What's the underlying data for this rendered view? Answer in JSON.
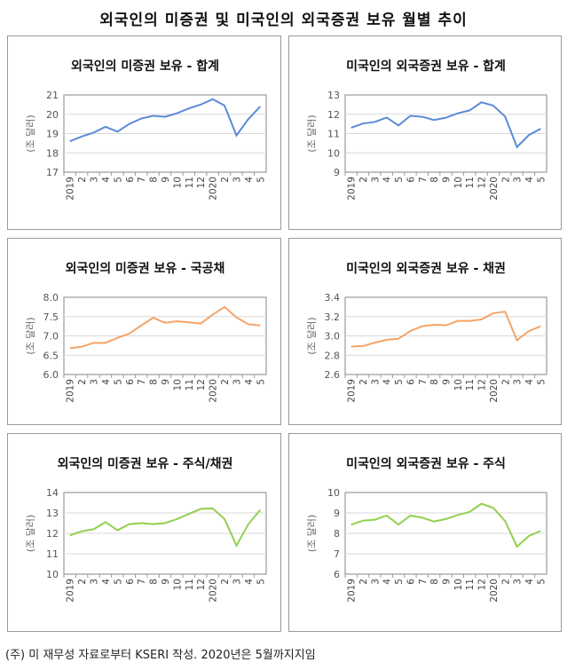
{
  "title": "외국인의 미증권 및 미국인의 외국증권 보유 월별 추이",
  "footnote": "(주) 미 재무성 자료로부터 KSERI 작성. 2020년은 5월까지지임",
  "chart_data": [
    {
      "type": "line",
      "title": "외국인의 미증권 보유 - 합계",
      "ylabel": "(조 달러)",
      "ylim": [
        17,
        21
      ],
      "yticks": [
        "17",
        "18",
        "19",
        "20",
        "21"
      ],
      "color": "#5B8BD6",
      "categories": [
        "2019",
        "2",
        "3",
        "4",
        "5",
        "6",
        "7",
        "8",
        "9",
        "10",
        "11",
        "12",
        "2020",
        "2",
        "3",
        "4",
        "5"
      ],
      "values": [
        18.6,
        18.85,
        19.05,
        19.35,
        19.1,
        19.5,
        19.78,
        19.92,
        19.87,
        20.05,
        20.3,
        20.5,
        20.78,
        20.45,
        18.9,
        19.75,
        20.4
      ]
    },
    {
      "type": "line",
      "title": "미국인의 외국증권 보유 - 합계",
      "ylabel": "(조 달러)",
      "ylim": [
        9,
        13
      ],
      "yticks": [
        "9",
        "10",
        "11",
        "12",
        "13"
      ],
      "color": "#5B8BD6",
      "categories": [
        "2019",
        "2",
        "3",
        "4",
        "5",
        "6",
        "7",
        "8",
        "9",
        "10",
        "11",
        "12",
        "2020",
        "2",
        "3",
        "4",
        "5"
      ],
      "values": [
        11.3,
        11.52,
        11.6,
        11.83,
        11.42,
        11.92,
        11.87,
        11.7,
        11.82,
        12.05,
        12.2,
        12.62,
        12.45,
        11.88,
        10.3,
        10.92,
        11.25
      ]
    },
    {
      "type": "line",
      "title": "외국인의 미증권 보유 - 국공채",
      "ylabel": "(조 달러)",
      "ylim": [
        6,
        8
      ],
      "yticks": [
        "6.0",
        "6.5",
        "7.0",
        "7.5",
        "8.0"
      ],
      "color": "#F4A468",
      "categories": [
        "2019",
        "2",
        "3",
        "4",
        "5",
        "6",
        "7",
        "8",
        "9",
        "10",
        "11",
        "12",
        "2020",
        "2",
        "3",
        "4",
        "5"
      ],
      "values": [
        6.68,
        6.72,
        6.82,
        6.82,
        6.95,
        7.06,
        7.27,
        7.47,
        7.34,
        7.38,
        7.35,
        7.32,
        7.55,
        7.75,
        7.48,
        7.3,
        7.27
      ]
    },
    {
      "type": "line",
      "title": "미국인의 외국증권 보유 - 채권",
      "ylabel": "(조 달러)",
      "ylim": [
        2.6,
        3.4
      ],
      "yticks": [
        "2.6",
        "2.8",
        "3.0",
        "3.2",
        "3.4"
      ],
      "color": "#F4A468",
      "categories": [
        "2019",
        "2",
        "3",
        "4",
        "5",
        "6",
        "7",
        "8",
        "9",
        "10",
        "11",
        "12",
        "2020",
        "2",
        "3",
        "4",
        "5"
      ],
      "values": [
        2.89,
        2.895,
        2.93,
        2.96,
        2.97,
        3.05,
        3.1,
        3.115,
        3.11,
        3.155,
        3.155,
        3.17,
        3.235,
        3.25,
        2.955,
        3.05,
        3.1
      ]
    },
    {
      "type": "line",
      "title": "외국인의 미증권 보유 - 주식/채권",
      "ylabel": "(조 달러)",
      "ylim": [
        10,
        14
      ],
      "yticks": [
        "10",
        "11",
        "12",
        "13",
        "14"
      ],
      "color": "#92D050",
      "categories": [
        "2019",
        "2",
        "3",
        "4",
        "5",
        "6",
        "7",
        "8",
        "9",
        "10",
        "11",
        "12",
        "2020",
        "2",
        "3",
        "4",
        "5"
      ],
      "values": [
        11.9,
        12.1,
        12.2,
        12.55,
        12.15,
        12.45,
        12.5,
        12.45,
        12.5,
        12.7,
        12.95,
        13.2,
        13.22,
        12.7,
        11.4,
        12.45,
        13.15
      ]
    },
    {
      "type": "line",
      "title": "미국인의 외국증권 보유 - 주식",
      "ylabel": "(조 달러)",
      "ylim": [
        6,
        10
      ],
      "yticks": [
        "6",
        "7",
        "8",
        "9",
        "10"
      ],
      "color": "#92D050",
      "categories": [
        "2019",
        "2",
        "3",
        "4",
        "5",
        "6",
        "7",
        "8",
        "9",
        "10",
        "11",
        "12",
        "2020",
        "2",
        "3",
        "4",
        "5"
      ],
      "values": [
        8.42,
        8.62,
        8.67,
        8.87,
        8.43,
        8.87,
        8.77,
        8.58,
        8.7,
        8.9,
        9.05,
        9.45,
        9.25,
        8.6,
        7.35,
        7.87,
        8.12
      ]
    }
  ]
}
